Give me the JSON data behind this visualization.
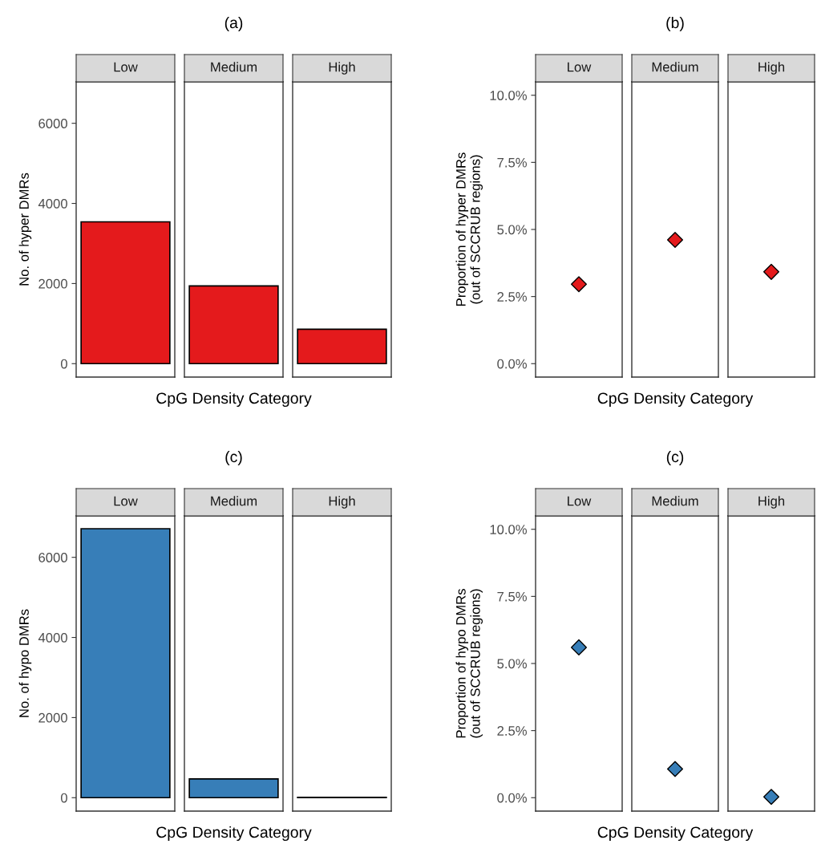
{
  "chart_data": [
    {
      "type": "bar",
      "title": "(a)",
      "xlabel": "CpG Density Category",
      "ylabel": "No. of hyper DMRs",
      "categories": [
        "Low",
        "Medium",
        "High"
      ],
      "values": [
        3540,
        1940,
        860
      ],
      "color": "#e41a1c",
      "ylim": [
        -335,
        7035
      ],
      "yticks": [
        0,
        2000,
        4000,
        6000
      ],
      "tick_labels": "y",
      "grid": false,
      "legend": false
    },
    {
      "type": "scatter",
      "title": "(b)",
      "xlabel": "CpG Density Category",
      "ylabel": "Proportion of hyper DMRs\n(out of SCCRUB regions)",
      "categories": [
        "Low",
        "Medium",
        "High"
      ],
      "values": [
        2.96,
        4.61,
        3.42
      ],
      "color": "#e41a1c",
      "marker": "diamond",
      "ylim": [
        -0.5,
        10.5
      ],
      "yticks": [
        {
          "value": 0,
          "label": "0.0%"
        },
        {
          "value": 2.5,
          "label": "2.5%"
        },
        {
          "value": 5,
          "label": "5.0%"
        },
        {
          "value": 7.5,
          "label": "7.5%"
        },
        {
          "value": 10,
          "label": "10.0%"
        }
      ],
      "tick_labels": "y",
      "grid": false,
      "legend": false
    },
    {
      "type": "bar",
      "title": "(c)",
      "xlabel": "CpG Density Category",
      "ylabel": "No. of hypo DMRs",
      "categories": [
        "Low",
        "Medium",
        "High"
      ],
      "values": [
        6715,
        467,
        10
      ],
      "color": "#377eb8",
      "ylim": [
        -335,
        7035
      ],
      "yticks": [
        0,
        2000,
        4000,
        6000
      ],
      "tick_labels": "y",
      "grid": false,
      "legend": false
    },
    {
      "type": "scatter",
      "title": "(c)",
      "xlabel": "CpG Density Category",
      "ylabel": "Proportion of hypo DMRs\n(out of SCCRUB regions)",
      "categories": [
        "Low",
        "Medium",
        "High"
      ],
      "values": [
        5.6,
        1.07,
        0.03
      ],
      "color": "#377eb8",
      "marker": "diamond",
      "ylim": [
        -0.5,
        10.5
      ],
      "yticks": [
        {
          "value": 0,
          "label": "0.0%"
        },
        {
          "value": 2.5,
          "label": "2.5%"
        },
        {
          "value": 5,
          "label": "5.0%"
        },
        {
          "value": 7.5,
          "label": "7.5%"
        },
        {
          "value": 10,
          "label": "10.0%"
        }
      ],
      "tick_labels": "y",
      "grid": false,
      "legend": false
    }
  ]
}
